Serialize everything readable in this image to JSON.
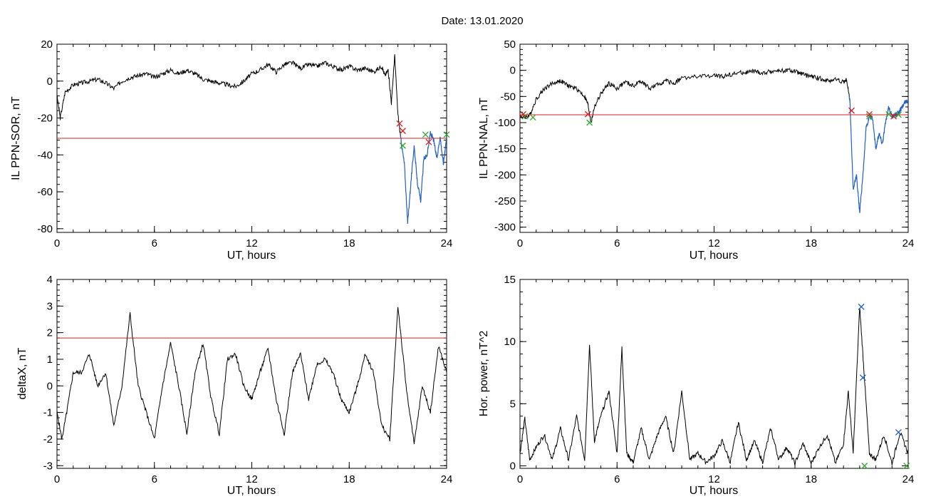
{
  "title": "Date:  13.01.2020",
  "colors": {
    "trace": "#000000",
    "active": "#1f5fc7",
    "threshold": "#d42020",
    "marker_red": "#d42020",
    "marker_green": "#2fa82f",
    "marker_blue": "#1f5fc7"
  },
  "chart_data": [
    {
      "id": "sor",
      "type": "line",
      "xlabel": "UT, hours",
      "ylabel": "IL PPN-SOR, nT",
      "xlim": [
        0,
        24
      ],
      "ylim": [
        -82,
        20
      ],
      "xticks": [
        0,
        6,
        12,
        18,
        24
      ],
      "yticks": [
        20,
        0,
        -20,
        -40,
        -60,
        -80
      ],
      "threshold": -31,
      "highlight_from": 21.2,
      "series": [
        {
          "x": [
            0,
            0.2,
            0.5,
            1,
            1.5,
            2,
            2.5,
            3,
            3.5,
            4,
            4.5,
            5,
            5.5,
            6,
            6.5,
            7,
            7.5,
            8,
            8.5,
            9,
            9.5,
            10,
            10.5,
            11,
            11.5,
            12,
            12.5,
            13,
            13.5,
            14,
            14.5,
            15,
            15.5,
            16,
            16.5,
            17,
            17.5,
            18,
            18.5,
            19,
            19.5,
            20,
            20.2,
            20.4,
            20.6,
            20.8,
            21,
            21.2,
            21.4,
            21.6,
            21.8,
            22,
            22.2,
            22.4,
            22.6,
            22.8,
            23,
            23.2,
            23.4,
            23.6,
            23.8,
            24
          ],
          "y": [
            -8,
            -20,
            -6,
            -2,
            -1,
            0,
            1,
            -1,
            -4,
            0,
            2,
            3,
            4,
            2,
            4,
            6,
            4,
            6,
            4,
            1,
            0,
            -1,
            -2,
            -3,
            0,
            4,
            6,
            9,
            5,
            9,
            10,
            7,
            9,
            8,
            10,
            8,
            6,
            8,
            6,
            7,
            5,
            8,
            3,
            6,
            -12,
            14,
            -18,
            -33,
            -45,
            -77,
            -55,
            -35,
            -55,
            -65,
            -42,
            -40,
            -28,
            -32,
            -42,
            -30,
            -45,
            -30
          ]
        }
      ],
      "markers": [
        {
          "x": 21.1,
          "y": -23,
          "color": "red"
        },
        {
          "x": 21.3,
          "y": -27,
          "color": "red"
        },
        {
          "x": 22.9,
          "y": -33,
          "color": "red"
        },
        {
          "x": 21.3,
          "y": -35,
          "color": "green"
        },
        {
          "x": 22.7,
          "y": -29,
          "color": "green"
        },
        {
          "x": 24.0,
          "y": -29,
          "color": "green"
        }
      ]
    },
    {
      "id": "nal",
      "type": "line",
      "xlabel": "UT, hours",
      "ylabel": "IL PPN-NAL, nT",
      "xlim": [
        0,
        24
      ],
      "ylim": [
        -310,
        50
      ],
      "xticks": [
        0,
        6,
        12,
        18,
        24
      ],
      "yticks": [
        50,
        0,
        -50,
        -100,
        -150,
        -200,
        -250,
        -300
      ],
      "threshold": -85,
      "highlight_from": 20.4,
      "series": [
        {
          "x": [
            0,
            0.3,
            0.6,
            1,
            1.5,
            2,
            2.5,
            3,
            3.5,
            4,
            4.2,
            4.4,
            4.6,
            5,
            5.5,
            6,
            6.5,
            7,
            7.5,
            8,
            8.5,
            9,
            9.5,
            10,
            11,
            12,
            12.5,
            13,
            13.5,
            14,
            14.5,
            15,
            15.5,
            16,
            16.5,
            17,
            17.5,
            18,
            18.5,
            19,
            19.5,
            20,
            20.2,
            20.4,
            20.6,
            20.8,
            21,
            21.2,
            21.4,
            21.6,
            21.8,
            22,
            22.2,
            22.4,
            22.6,
            22.8,
            23,
            23.2,
            23.4,
            23.6,
            23.8,
            24
          ],
          "y": [
            -88,
            -90,
            -86,
            -55,
            -35,
            -25,
            -20,
            -30,
            -35,
            -50,
            -65,
            -100,
            -70,
            -45,
            -25,
            -35,
            -22,
            -30,
            -20,
            -35,
            -28,
            -20,
            -25,
            -15,
            -12,
            -10,
            -12,
            -8,
            -5,
            -4,
            -2,
            -6,
            -2,
            -1,
            0,
            -2,
            -8,
            -12,
            -15,
            -20,
            -17,
            -22,
            -18,
            -60,
            -230,
            -200,
            -272,
            -200,
            -110,
            -88,
            -92,
            -150,
            -120,
            -140,
            -100,
            -70,
            -88,
            -85,
            -82,
            -72,
            -60,
            -60
          ]
        }
      ],
      "markers": [
        {
          "x": 0.3,
          "y": -88,
          "color": "green"
        },
        {
          "x": 0.8,
          "y": -90,
          "color": "green"
        },
        {
          "x": 4.3,
          "y": -100,
          "color": "green"
        },
        {
          "x": 21.6,
          "y": -88,
          "color": "green"
        },
        {
          "x": 22.8,
          "y": -84,
          "color": "green"
        },
        {
          "x": 23.4,
          "y": -85,
          "color": "green"
        },
        {
          "x": 0.2,
          "y": -84,
          "color": "red"
        },
        {
          "x": 4.2,
          "y": -84,
          "color": "red"
        },
        {
          "x": 20.5,
          "y": -77,
          "color": "red"
        },
        {
          "x": 21.6,
          "y": -84,
          "color": "red"
        },
        {
          "x": 23.1,
          "y": -88,
          "color": "red"
        }
      ]
    },
    {
      "id": "deltax",
      "type": "line",
      "xlabel": "UT, hours",
      "ylabel": "deltaX, nT",
      "xlim": [
        0,
        24
      ],
      "ylim": [
        -3.1,
        4
      ],
      "xticks": [
        0,
        6,
        12,
        18,
        24
      ],
      "yticks": [
        4,
        3,
        2,
        1,
        0,
        -1,
        -2,
        -3
      ],
      "threshold": 1.8,
      "series": [
        {
          "x": [
            0,
            0.3,
            0.6,
            1,
            1.5,
            2,
            2.5,
            3,
            3.5,
            4,
            4.5,
            5,
            5.5,
            6,
            6.5,
            7,
            7.5,
            8,
            8.5,
            9,
            9.5,
            10,
            10.5,
            11,
            11.5,
            12,
            12.5,
            13,
            13.5,
            14,
            14.5,
            15,
            15.5,
            16,
            16.5,
            17,
            17.5,
            18,
            18.5,
            19,
            19.5,
            20,
            20.5,
            21,
            21.5,
            22,
            22.5,
            23,
            23.5,
            24
          ],
          "y": [
            -1,
            -2,
            -1,
            0.5,
            0.5,
            1.2,
            0,
            0.5,
            -1.5,
            0,
            2.7,
            0,
            -1,
            -2,
            0,
            1.6,
            0,
            -1.8,
            0.5,
            1.6,
            -0.5,
            -1.8,
            1,
            1.2,
            0,
            -0.5,
            0.5,
            1.4,
            -0.5,
            -1.8,
            0.5,
            1.2,
            -0.5,
            0.8,
            1.0,
            0.5,
            -0.5,
            -1,
            0,
            1.2,
            0.5,
            -1.5,
            -2,
            3,
            0,
            -2.2,
            0,
            -1,
            1.5,
            0.5
          ]
        }
      ]
    },
    {
      "id": "power",
      "type": "line",
      "xlabel": "UT, hours",
      "ylabel": "Hor. power, nT^2",
      "xlim": [
        0,
        24
      ],
      "ylim": [
        -0.2,
        15
      ],
      "xticks": [
        0,
        6,
        12,
        18,
        24
      ],
      "yticks": [
        15,
        10,
        5,
        0
      ],
      "series": [
        {
          "x": [
            0,
            0.3,
            0.6,
            1,
            1.5,
            2,
            2.5,
            3,
            3.5,
            4,
            4.3,
            4.6,
            5,
            5.5,
            6,
            6.3,
            6.6,
            7,
            7.5,
            8,
            8.5,
            9,
            9.5,
            10,
            10.5,
            11,
            11.5,
            12,
            12.5,
            13,
            13.5,
            14,
            14.5,
            15,
            15.5,
            16,
            16.5,
            17,
            17.5,
            18,
            18.5,
            19,
            19.5,
            20,
            20.3,
            20.6,
            21,
            21.3,
            21.6,
            22,
            22.5,
            23,
            23.5,
            24
          ],
          "y": [
            1,
            3.8,
            0.5,
            1.5,
            2.5,
            0.5,
            3,
            0.5,
            4,
            0.5,
            9.8,
            2,
            4,
            6,
            1,
            9.5,
            1,
            0.3,
            3,
            0.5,
            2.5,
            4,
            1,
            6,
            0.5,
            1,
            0.3,
            0.8,
            2,
            0.3,
            3.5,
            0.5,
            2,
            0.3,
            3,
            0.5,
            1.5,
            0.2,
            1.8,
            0.2,
            1.5,
            2.5,
            0.2,
            1.8,
            6,
            1,
            12.8,
            7,
            1,
            0.5,
            2.5,
            0.2,
            2.7,
            1
          ]
        }
      ],
      "markers": [
        {
          "x": 21.1,
          "y": 12.8,
          "color": "blue"
        },
        {
          "x": 21.2,
          "y": 7.1,
          "color": "blue"
        },
        {
          "x": 23.4,
          "y": 2.7,
          "color": "blue"
        },
        {
          "x": 21.3,
          "y": 0,
          "color": "green"
        },
        {
          "x": 23.9,
          "y": 0,
          "color": "green"
        }
      ]
    }
  ]
}
